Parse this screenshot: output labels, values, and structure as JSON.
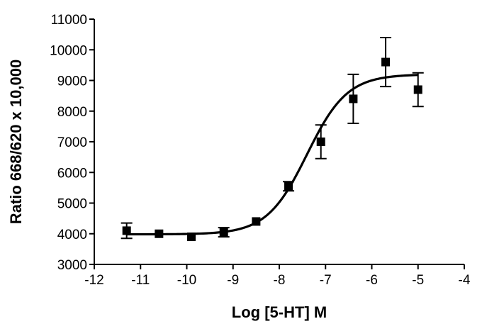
{
  "chart_data": {
    "type": "scatter",
    "title": "",
    "xlabel": "Log [5-HT] M",
    "ylabel": "Ratio 668/620 x 10,000",
    "xlim": [
      -12,
      -4
    ],
    "ylim": [
      3000,
      11000
    ],
    "x_ticks": [
      -12,
      -11,
      -10,
      -9,
      -8,
      -7,
      -6,
      -5,
      -4
    ],
    "y_ticks": [
      3000,
      4000,
      5000,
      6000,
      7000,
      8000,
      9000,
      10000,
      11000
    ],
    "x_tick_labels": [
      "-12",
      "-11",
      "-10",
      "-9",
      "-8",
      "-7",
      "-6",
      "-5",
      "-4"
    ],
    "y_tick_labels": [
      "3000",
      "4000",
      "5000",
      "6000",
      "7000",
      "8000",
      "9000",
      "10000",
      "11000"
    ],
    "grid": false,
    "legend": "none",
    "marker": "square",
    "color": "#000000",
    "points": [
      {
        "x": -11.3,
        "y": 4100,
        "err": 250
      },
      {
        "x": -10.6,
        "y": 4000,
        "err": 0
      },
      {
        "x": -9.9,
        "y": 3900,
        "err": 0
      },
      {
        "x": -9.2,
        "y": 4050,
        "err": 150
      },
      {
        "x": -8.5,
        "y": 4400,
        "err": 0
      },
      {
        "x": -7.8,
        "y": 5550,
        "err": 150
      },
      {
        "x": -7.1,
        "y": 7000,
        "err": 550
      },
      {
        "x": -6.4,
        "y": 8400,
        "err": 800
      },
      {
        "x": -5.7,
        "y": 9600,
        "err": 800
      },
      {
        "x": -5.0,
        "y": 8700,
        "err": 550
      }
    ],
    "fit": {
      "model": "sigmoidal dose-response",
      "bottom": 3980,
      "top": 9200,
      "logEC50": -7.4,
      "hill": 1.0,
      "x_range": [
        -11.3,
        -5.0
      ]
    }
  }
}
